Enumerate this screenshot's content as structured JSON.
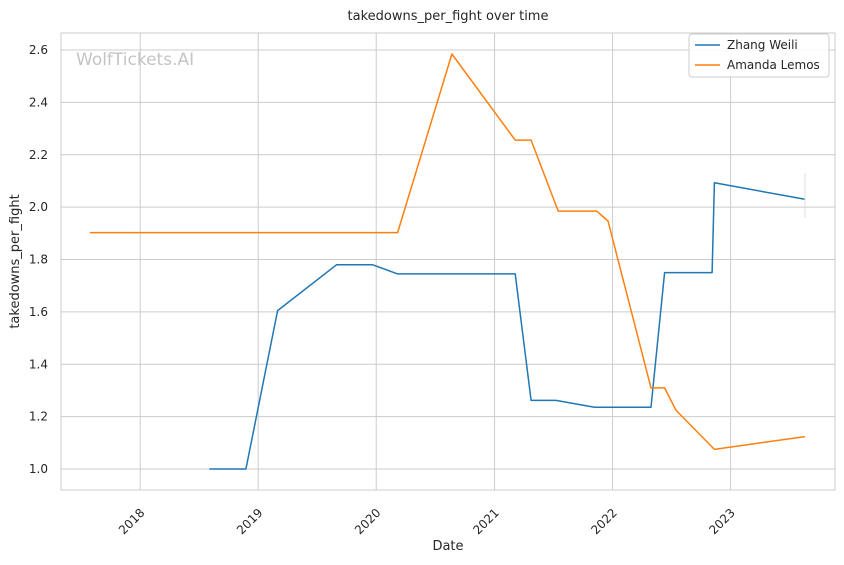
{
  "chart_data": {
    "type": "line",
    "title": "takedowns_per_fight over time",
    "xlabel": "Date",
    "ylabel": "takedowns_per_fight",
    "watermark": "WolfTickets.AI",
    "xlim": [
      "2017-05-01",
      "2023-11-20"
    ],
    "ylim": [
      0.92,
      2.665
    ],
    "x_ticks": [
      "2018-01-01",
      "2019-01-01",
      "2020-01-01",
      "2021-01-01",
      "2022-01-01",
      "2023-01-01"
    ],
    "x_tick_labels": [
      "2018",
      "2019",
      "2020",
      "2021",
      "2022",
      "2023"
    ],
    "y_ticks": [
      1.0,
      1.2,
      1.4,
      1.6,
      1.8,
      2.0,
      2.2,
      2.4,
      2.6
    ],
    "y_tick_labels": [
      "1.0",
      "1.2",
      "1.4",
      "1.6",
      "1.8",
      "2.0",
      "2.2",
      "2.4",
      "2.6"
    ],
    "grid": true,
    "legend_position": "top-right",
    "series": [
      {
        "name": "Zhang Weili",
        "color": "#1f77b4",
        "points": [
          {
            "x": "2018-08-03",
            "y": 1.0
          },
          {
            "x": "2018-11-24",
            "y": 1.0
          },
          {
            "x": "2019-03-02",
            "y": 1.605
          },
          {
            "x": "2019-08-31",
            "y": 1.78
          },
          {
            "x": "2019-12-21",
            "y": 1.78
          },
          {
            "x": "2020-03-07",
            "y": 1.745
          },
          {
            "x": "2021-03-06",
            "y": 1.745
          },
          {
            "x": "2021-04-24",
            "y": 1.262
          },
          {
            "x": "2021-07-10",
            "y": 1.262
          },
          {
            "x": "2021-11-06",
            "y": 1.236
          },
          {
            "x": "2022-04-30",
            "y": 1.236
          },
          {
            "x": "2022-06-11",
            "y": 1.75
          },
          {
            "x": "2022-11-05",
            "y": 1.75
          },
          {
            "x": "2022-11-12",
            "y": 2.093
          },
          {
            "x": "2023-08-19",
            "y": 2.03
          }
        ]
      },
      {
        "name": "Amanda Lemos",
        "color": "#ff7f0e",
        "points": [
          {
            "x": "2017-07-29",
            "y": 1.903
          },
          {
            "x": "2020-03-07",
            "y": 1.903
          },
          {
            "x": "2020-08-22",
            "y": 2.585
          },
          {
            "x": "2021-03-06",
            "y": 2.256
          },
          {
            "x": "2021-04-24",
            "y": 2.256
          },
          {
            "x": "2021-07-17",
            "y": 1.985
          },
          {
            "x": "2021-11-13",
            "y": 1.985
          },
          {
            "x": "2021-12-18",
            "y": 1.947
          },
          {
            "x": "2022-04-30",
            "y": 1.31
          },
          {
            "x": "2022-06-11",
            "y": 1.31
          },
          {
            "x": "2022-07-16",
            "y": 1.225
          },
          {
            "x": "2022-11-12",
            "y": 1.075
          },
          {
            "x": "2023-08-19",
            "y": 1.124
          }
        ]
      }
    ]
  }
}
